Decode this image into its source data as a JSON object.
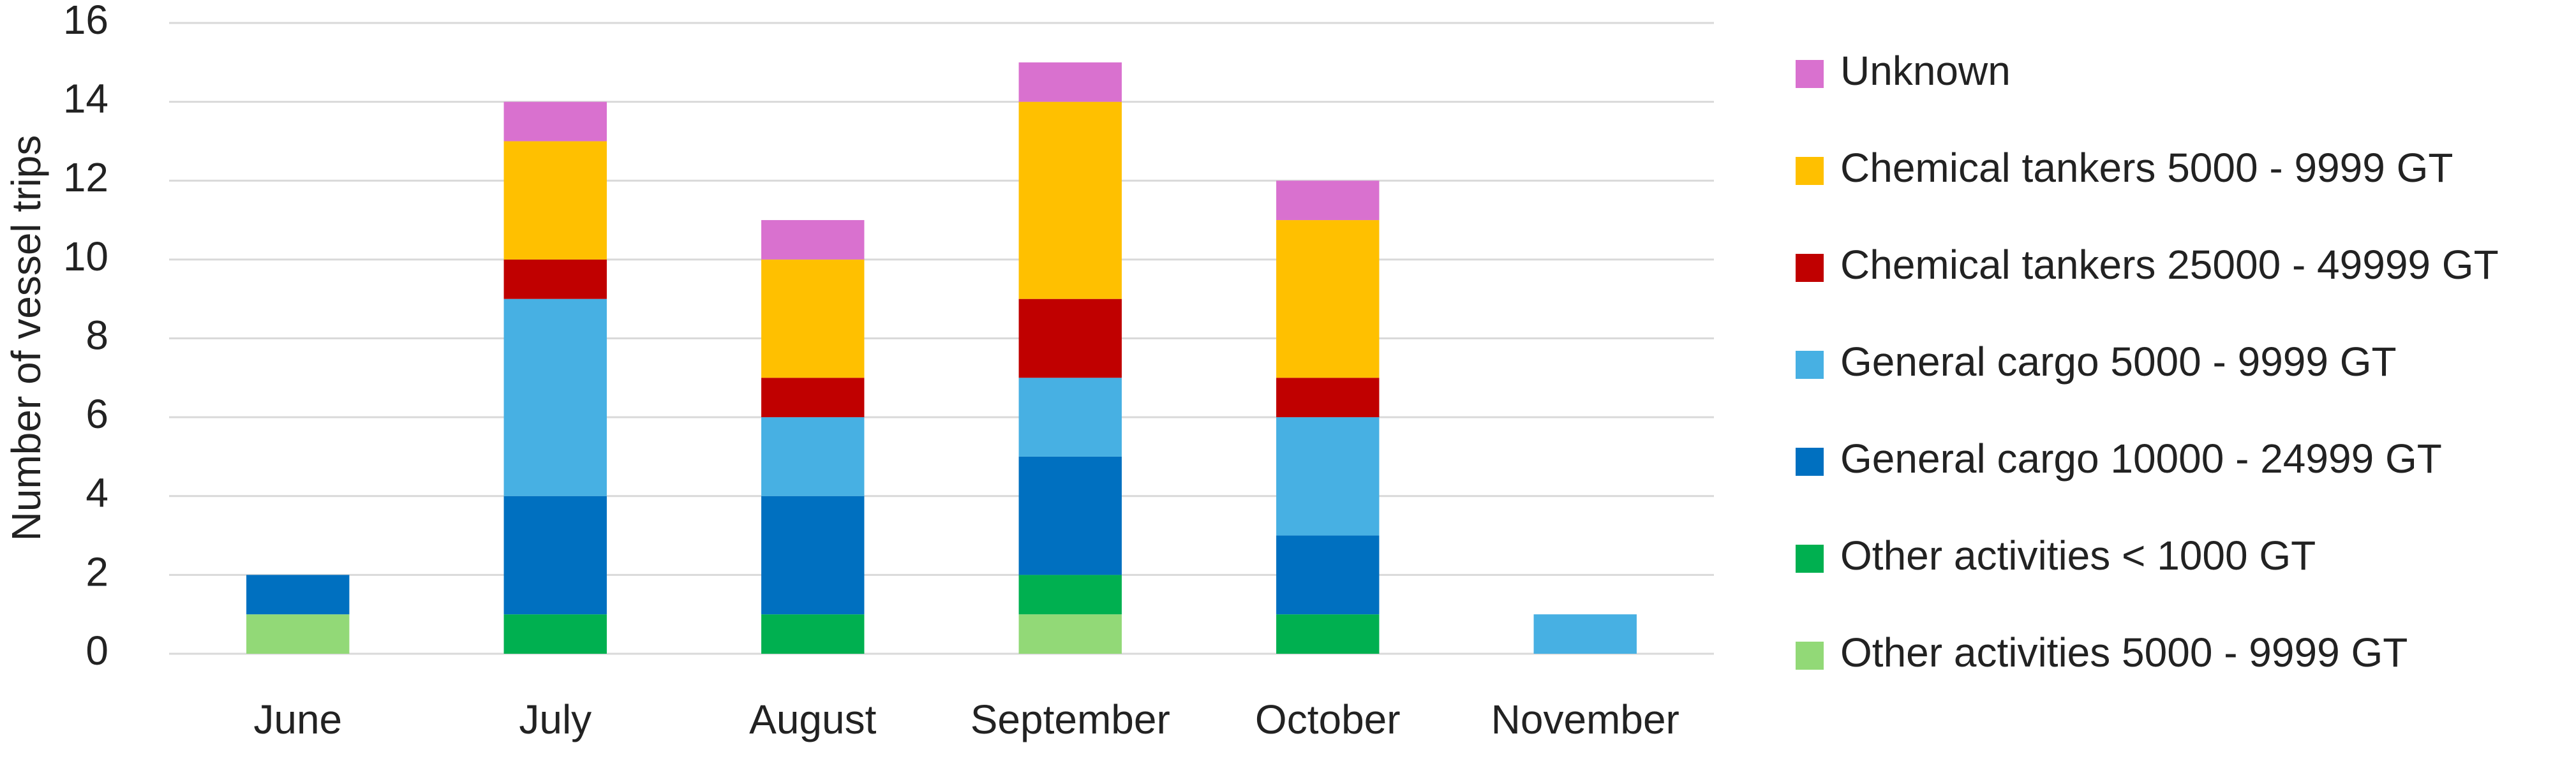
{
  "chart_data": {
    "type": "stacked-bar",
    "y_label": "Number of vessel trips",
    "categories": [
      "June",
      "July",
      "August",
      "September",
      "October",
      "November"
    ],
    "series": [
      {
        "name": "Other activities 5000 - 9999 GT",
        "color": "#92d977",
        "values": [
          1,
          0,
          0,
          1,
          0,
          0
        ]
      },
      {
        "name": "Other activities < 1000 GT",
        "color": "#00b050",
        "values": [
          0,
          1,
          1,
          1,
          1,
          0
        ]
      },
      {
        "name": "General cargo 10000 - 24999 GT",
        "color": "#0070c0",
        "values": [
          1,
          3,
          3,
          3,
          2,
          0
        ]
      },
      {
        "name": "General cargo 5000 - 9999 GT",
        "color": "#47b0e3",
        "values": [
          0,
          5,
          2,
          2,
          3,
          1
        ]
      },
      {
        "name": "Chemical tankers 25000 - 49999 GT",
        "color": "#c00000",
        "values": [
          0,
          1,
          1,
          2,
          1,
          0
        ]
      },
      {
        "name": "Chemical tankers 5000 - 9999 GT",
        "color": "#ffc000",
        "values": [
          0,
          3,
          3,
          5,
          4,
          0
        ]
      },
      {
        "name": "Unknown",
        "color": "#d971cf",
        "values": [
          0,
          1,
          1,
          1,
          1,
          0
        ]
      }
    ],
    "ylim": [
      0,
      16
    ],
    "yticks": [
      0,
      2,
      4,
      6,
      8,
      10,
      12,
      14,
      16
    ],
    "grid": true
  }
}
